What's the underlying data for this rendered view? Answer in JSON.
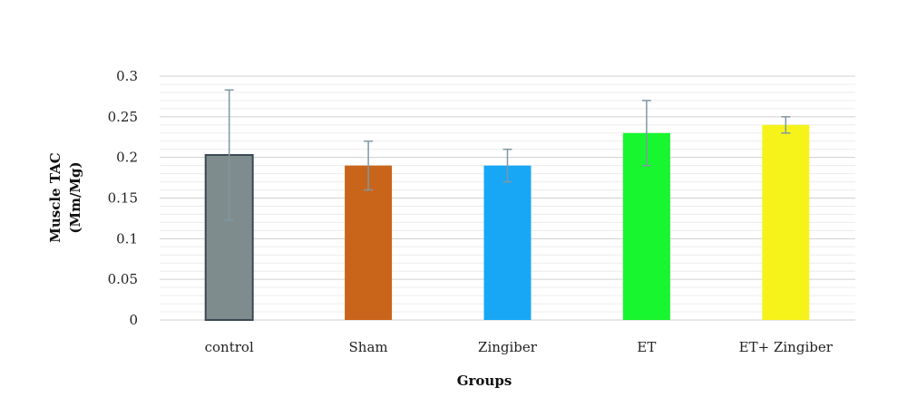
{
  "chart_data": {
    "type": "bar",
    "categories": [
      "control",
      "Sham",
      "Zingiber",
      "ET",
      "ET+ Zingiber"
    ],
    "values": [
      0.203,
      0.19,
      0.19,
      0.23,
      0.24
    ],
    "error_lower": [
      0.123,
      0.16,
      0.17,
      0.19,
      0.23
    ],
    "error_upper": [
      0.283,
      0.22,
      0.21,
      0.27,
      0.25
    ],
    "colors": [
      "#7f8c8d",
      "#c8651b",
      "#18a7f5",
      "#17f62e",
      "#f6f31b"
    ],
    "bar_outline": [
      "#3a4a54",
      "none",
      "none",
      "none",
      "none"
    ],
    "error_bar_color": "#8097a3",
    "grid_color": "#dcdcdc",
    "ylim": [
      0,
      0.3
    ],
    "yticks": [
      "0",
      "0.05",
      "0.1",
      "0.15",
      "0.2",
      "0.25",
      "0.3"
    ],
    "ytick_values": [
      0,
      0.05,
      0.1,
      0.15,
      0.2,
      0.25,
      0.3
    ],
    "minor_grid": true,
    "xlabel": "Groups",
    "ylabel_line1": "Muscle TAC",
    "ylabel_line2": "(Mm/Mg)",
    "title": ""
  }
}
